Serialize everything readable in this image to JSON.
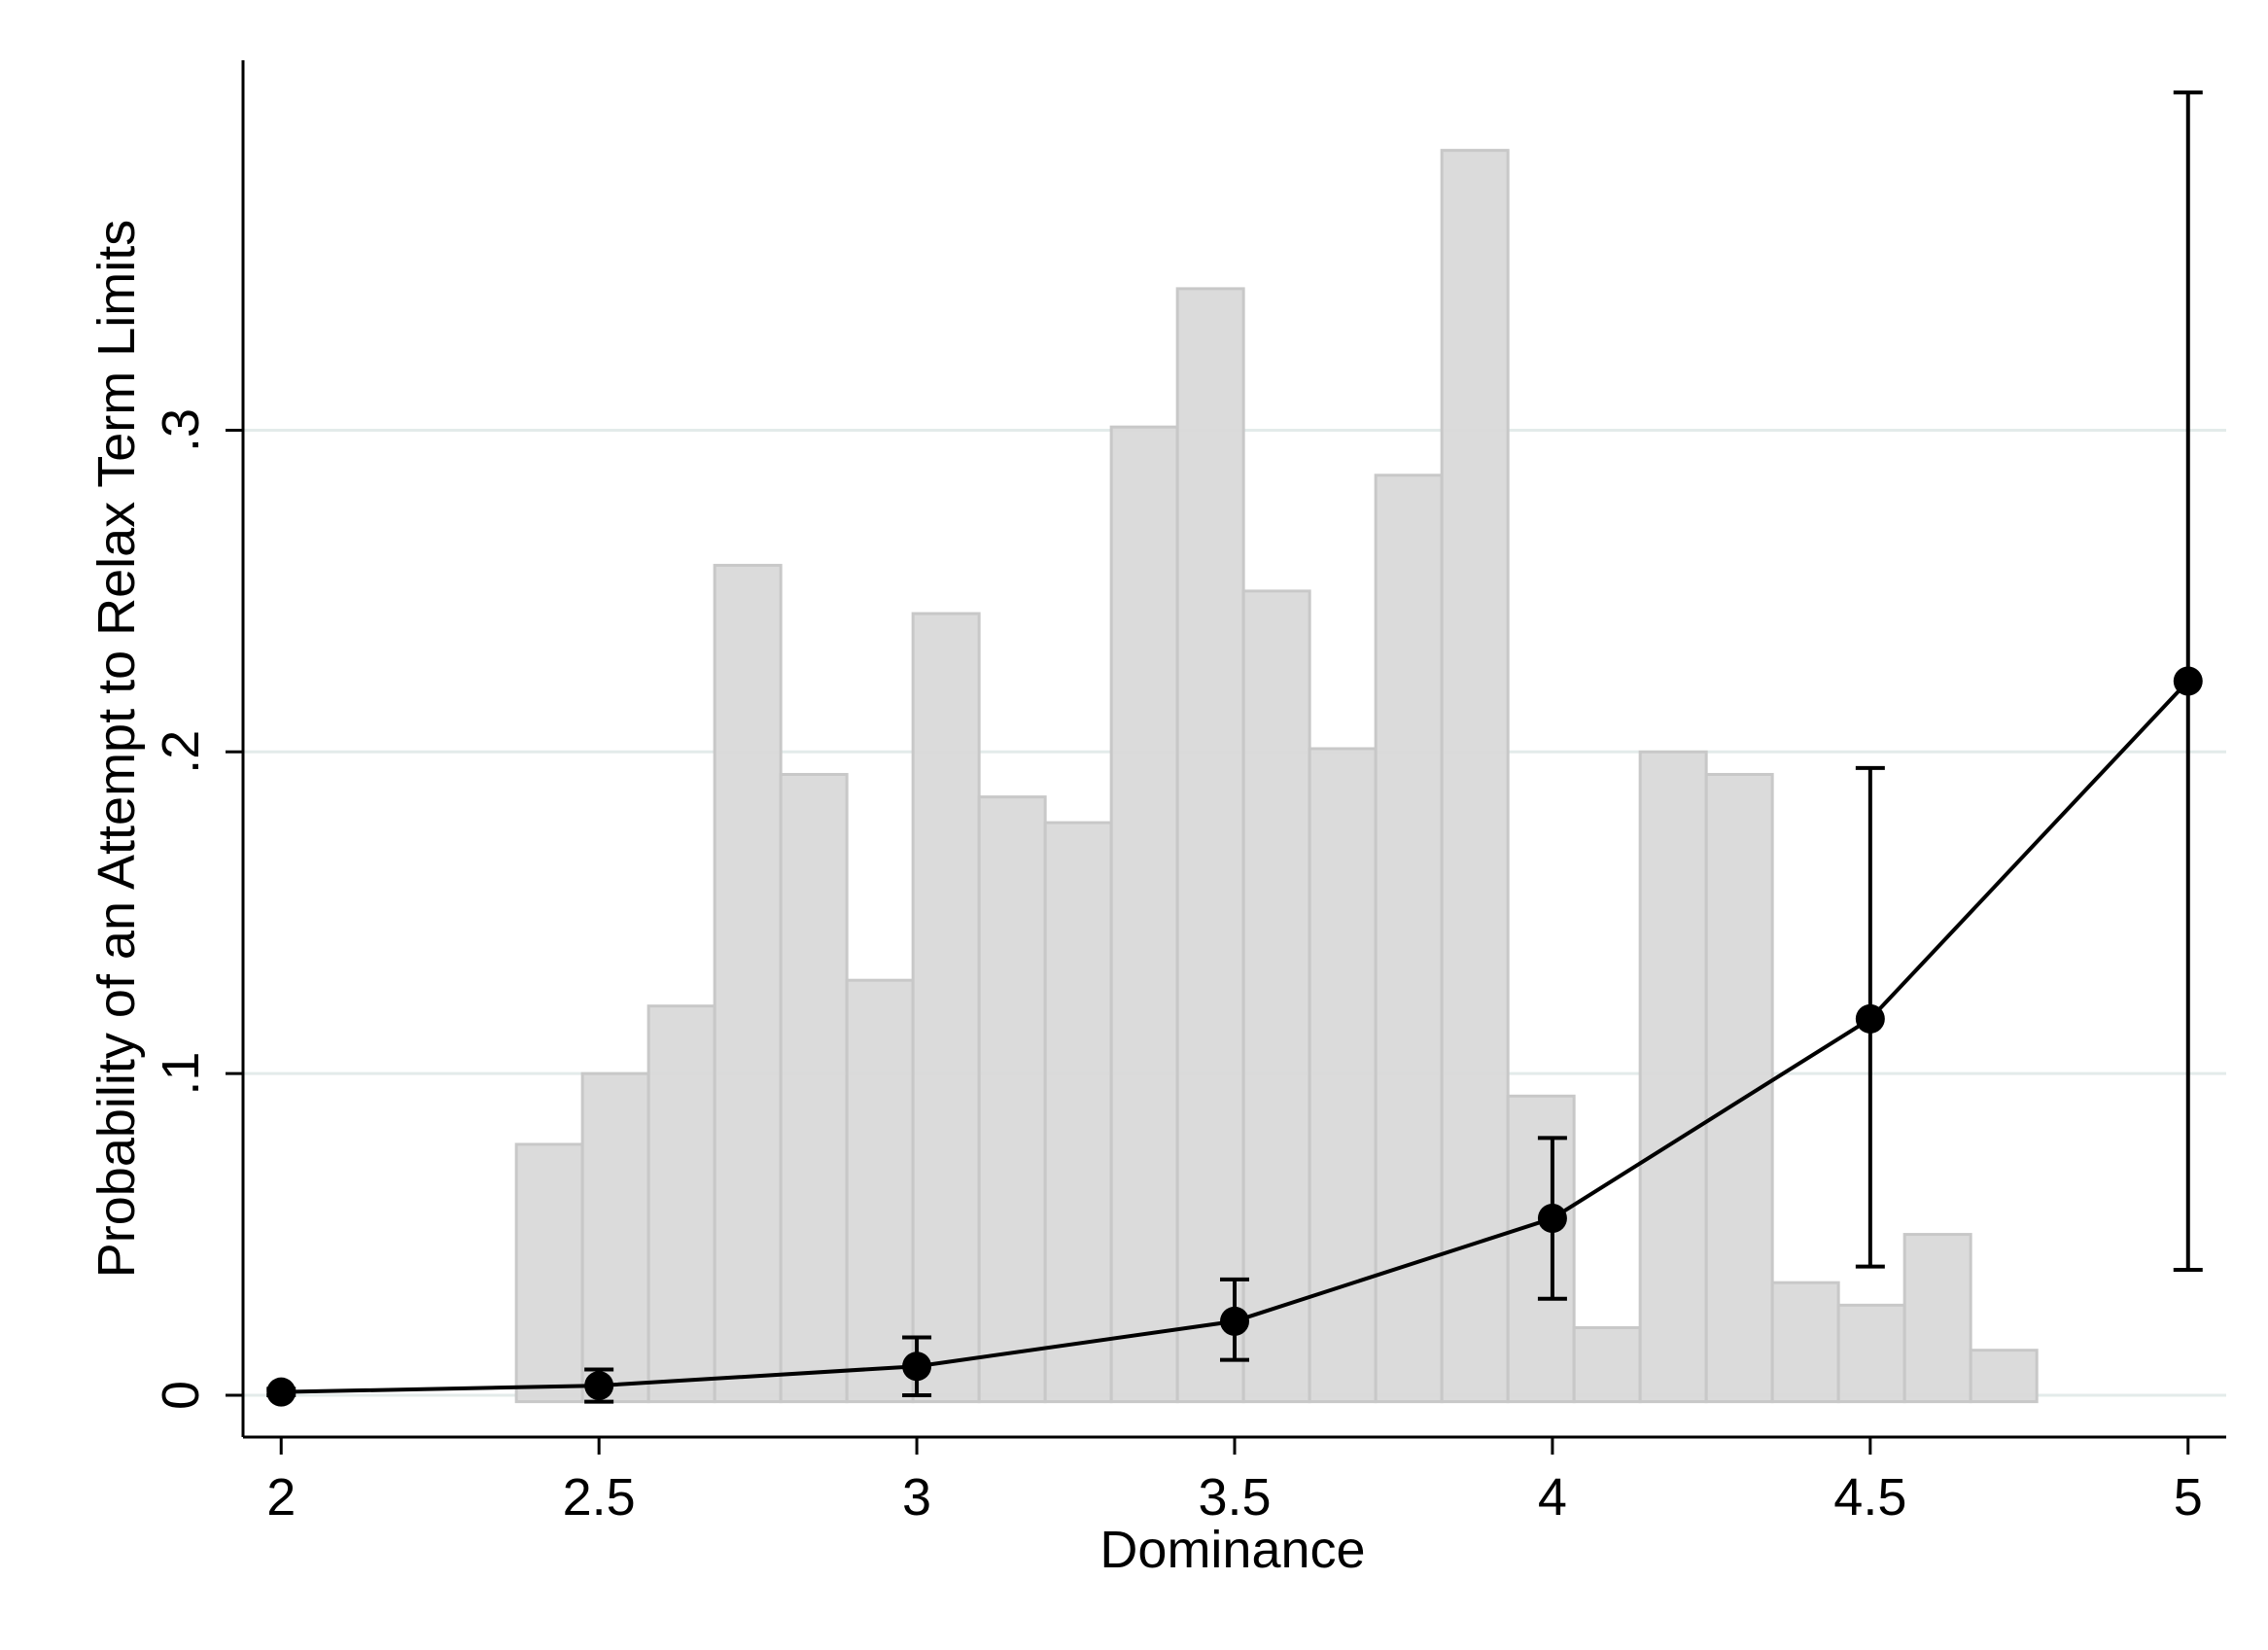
{
  "chart_data": {
    "type": "bar",
    "xlabel": "Dominance",
    "ylabel": "Probability of an Attempt to Relax Term Limits",
    "xlim": [
      1.94,
      5.06
    ],
    "ylim": [
      -0.013,
      0.415
    ],
    "x_ticks": [
      {
        "value": 2,
        "label": "2"
      },
      {
        "value": 2.5,
        "label": "2.5"
      },
      {
        "value": 3,
        "label": "3"
      },
      {
        "value": 3.5,
        "label": "3.5"
      },
      {
        "value": 4,
        "label": "4"
      },
      {
        "value": 4.5,
        "label": "4.5"
      },
      {
        "value": 5,
        "label": "5"
      }
    ],
    "y_ticks": [
      {
        "value": 0,
        "label": "0"
      },
      {
        "value": 0.1,
        "label": ".1"
      },
      {
        "value": 0.2,
        "label": ".2"
      },
      {
        "value": 0.3,
        "label": ".3"
      }
    ],
    "grid": "horizontal",
    "histogram": {
      "baseline": -0.002,
      "bin_width": 0.104,
      "start": 2.37,
      "heights": [
        0.078,
        0.1,
        0.121,
        0.258,
        0.193,
        0.129,
        0.243,
        0.186,
        0.178,
        0.301,
        0.344,
        0.25,
        0.201,
        0.286,
        0.387,
        0.093,
        0.021,
        0.2,
        0.193,
        0.035,
        0.028,
        0.05,
        0.014
      ]
    },
    "series": [
      {
        "type": "line",
        "x": [
          2,
          2.5,
          3,
          3.5,
          4,
          4.5,
          5
        ],
        "y": [
          0.001,
          0.003,
          0.009,
          0.023,
          0.055,
          0.117,
          0.222
        ],
        "ci_low": [
          0.0,
          -0.002,
          0.0,
          0.011,
          0.03,
          0.04,
          0.039
        ],
        "ci_high": [
          0.002,
          0.008,
          0.018,
          0.036,
          0.08,
          0.195,
          0.405
        ]
      }
    ],
    "colors": {
      "bar_fill": "#d9d9d9",
      "bar_stroke": "#c8c8c8",
      "grid": "#e3ebea",
      "line": "#000000",
      "axis": "#000000"
    }
  }
}
